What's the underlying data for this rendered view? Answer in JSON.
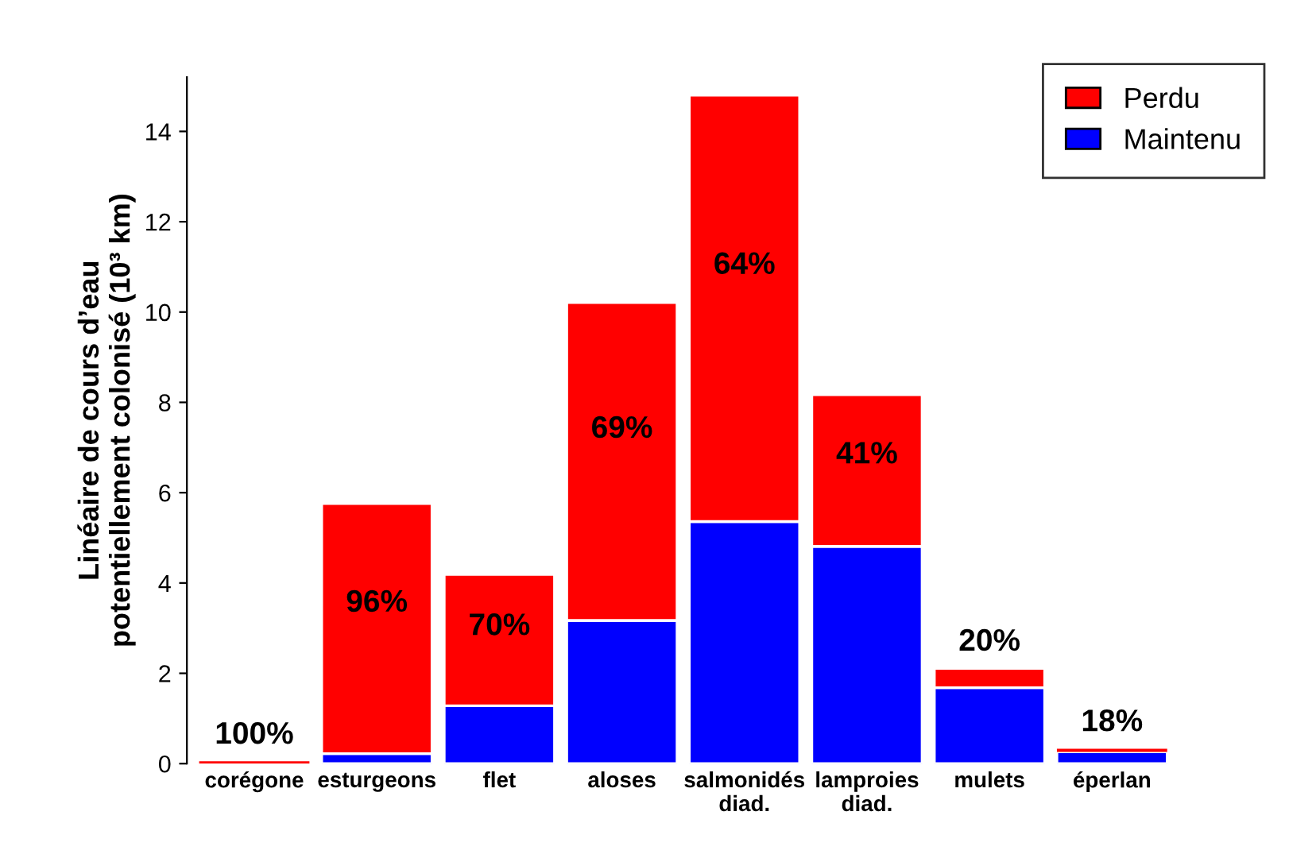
{
  "chart_data": {
    "type": "bar",
    "stacked": true,
    "ylabel": "Linéaire de cours d’eau\npotentiellement colonisé (10³ km)",
    "categories": [
      "corégone",
      "esturgeons",
      "flet",
      "aloses",
      "salmonidés\ndiad.",
      "lamproies\ndiad.",
      "mulets",
      "éperlan"
    ],
    "series": [
      {
        "name": "Maintenu",
        "color": "#0000ff",
        "values": [
          null,
          0.22,
          1.28,
          3.17,
          5.36,
          4.81,
          1.68,
          0.26
        ]
      },
      {
        "name": "Perdu",
        "color": "#ff0000",
        "values": [
          0.05,
          5.54,
          2.91,
          7.04,
          9.44,
          3.36,
          0.43,
          0.07
        ]
      }
    ],
    "ylim": [
      0,
      15.2
    ],
    "yticks": [
      0,
      2,
      4,
      6,
      8,
      10,
      12,
      14
    ],
    "grid": false,
    "legend": "top right",
    "annotations": [
      "100%",
      "96%",
      "70%",
      "69%",
      "64%",
      "41%",
      "20%",
      "18%"
    ]
  }
}
